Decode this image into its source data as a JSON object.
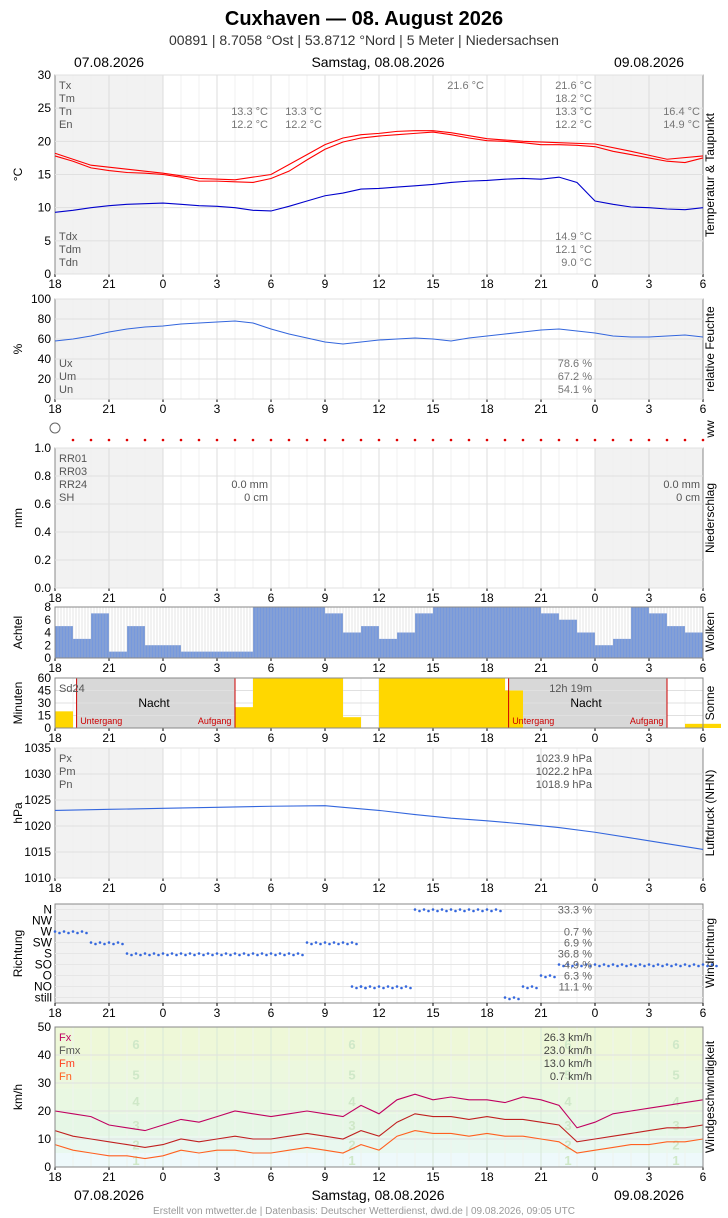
{
  "header": {
    "title": "Cuxhaven  —  08. August 2026",
    "subtitle": "00891  |  8.7058 °Ost  |  53.8712 °Nord  |  5 Meter  |  Niedersachsen",
    "date_left": "07.08.2026",
    "date_center": "Samstag, 08.08.2026",
    "date_right": "09.08.2026"
  },
  "footer": {
    "credit": "Erstellt von mtwetter.de | Datenbasis: Deutscher Wetterdienst, dwd.de | 09.08.2026, 09:05 UTC",
    "date_left": "07.08.2026",
    "date_center": "Samstag, 08.08.2026",
    "date_right": "09.08.2026"
  },
  "x_ticks": [
    "18",
    "21",
    "0",
    "3",
    "6",
    "9",
    "12",
    "15",
    "18",
    "21",
    "0",
    "3",
    "6"
  ],
  "chart_data": [
    {
      "id": "temperature",
      "type": "line",
      "side_label": "Temperatur & Taupunkt",
      "ylabel": "°C",
      "ylim": [
        0,
        30
      ],
      "yticks": [
        0,
        5,
        10,
        15,
        20,
        25,
        30
      ],
      "series": [
        {
          "name": "T",
          "color": "#ff0000",
          "x": [
            18,
            19,
            20,
            21,
            22,
            23,
            24,
            25,
            26,
            27,
            28,
            29,
            30,
            31,
            32,
            33,
            34,
            35,
            36,
            37,
            38,
            39,
            40,
            41,
            42,
            43,
            44,
            45,
            46,
            47,
            48,
            49,
            50,
            51,
            52,
            53,
            54
          ],
          "values": [
            17.8,
            17.0,
            16.0,
            15.6,
            15.3,
            15.2,
            15.0,
            14.6,
            14.0,
            14.0,
            13.9,
            13.8,
            14.4,
            15.5,
            17.2,
            18.8,
            19.9,
            20.5,
            20.8,
            21.0,
            21.2,
            21.4,
            21.0,
            20.5,
            20.1,
            20.0,
            19.8,
            19.5,
            19.5,
            19.4,
            19.2,
            18.5,
            18.0,
            17.5,
            17.0,
            16.8,
            17.5
          ]
        },
        {
          "name": "Tmax",
          "color": "#ff0000",
          "x": [
            18,
            20,
            22,
            24,
            26,
            28,
            30,
            32,
            33,
            34,
            35,
            36,
            37,
            38,
            39,
            40,
            42,
            44,
            46,
            48,
            50,
            52,
            54
          ],
          "values": [
            18.2,
            16.4,
            15.8,
            15.2,
            14.4,
            14.2,
            15.0,
            18.0,
            19.5,
            20.5,
            21.0,
            21.2,
            21.5,
            21.6,
            21.6,
            21.3,
            20.4,
            20.0,
            19.8,
            19.6,
            18.5,
            17.3,
            17.8
          ]
        },
        {
          "name": "Td",
          "color": "#0000cc",
          "x": [
            18,
            19,
            20,
            21,
            22,
            23,
            24,
            25,
            26,
            27,
            28,
            29,
            30,
            31,
            32,
            33,
            34,
            35,
            36,
            37,
            38,
            39,
            40,
            41,
            42,
            43,
            44,
            45,
            46,
            47,
            48,
            49,
            50,
            51,
            52,
            53,
            54
          ],
          "values": [
            9.3,
            9.6,
            10.0,
            10.3,
            10.5,
            10.6,
            10.7,
            10.5,
            10.3,
            10.2,
            10.0,
            9.6,
            9.5,
            10.2,
            11.0,
            11.8,
            12.2,
            12.8,
            12.9,
            13.1,
            13.3,
            13.5,
            13.8,
            14.0,
            14.1,
            14.3,
            14.4,
            14.3,
            14.6,
            13.8,
            11.0,
            10.5,
            10.1,
            10.0,
            9.8,
            9.7,
            10.0
          ]
        }
      ],
      "stats_top": {
        "labels": [
          "Tx",
          "Tm",
          "Tn",
          "En"
        ],
        "day1": [
          "",
          "",
          "13.3 °C",
          "12.2 °C"
        ],
        "day2": [
          "21.6 °C",
          "18.2 °C",
          "13.3 °C",
          "12.2 °C"
        ],
        "day3": [
          "",
          "",
          "16.4 °C",
          "14.9 °C"
        ],
        "night": [
          "",
          "",
          "13.3 °C",
          "12.2 °C"
        ],
        "peak": "21.6 °C"
      },
      "stats_bottom": {
        "labels": [
          "Tdx",
          "Tdm",
          "Tdn"
        ],
        "values": [
          "14.9 °C",
          "12.1 °C",
          "9.0 °C"
        ]
      }
    },
    {
      "id": "humidity",
      "type": "line",
      "side_label": "relative Feuchte",
      "ylabel": "%",
      "ylim": [
        0,
        100
      ],
      "yticks": [
        0,
        20,
        40,
        60,
        80,
        100
      ],
      "series": [
        {
          "name": "U",
          "color": "#3366dd",
          "x": [
            18,
            19,
            20,
            21,
            22,
            23,
            24,
            25,
            26,
            27,
            28,
            29,
            30,
            31,
            32,
            33,
            34,
            35,
            36,
            37,
            38,
            39,
            40,
            41,
            42,
            43,
            44,
            45,
            46,
            47,
            48,
            49,
            50,
            51,
            52,
            53,
            54
          ],
          "values": [
            58,
            60,
            63,
            67,
            70,
            72,
            73,
            75,
            76,
            77,
            78,
            76,
            70,
            65,
            61,
            57,
            55,
            57,
            59,
            60,
            61,
            60,
            58,
            61,
            63,
            65,
            67,
            69,
            70,
            68,
            66,
            63,
            62,
            62,
            63,
            64,
            62
          ]
        }
      ],
      "stats": {
        "labels": [
          "Ux",
          "Um",
          "Un"
        ],
        "values": [
          "78.6 %",
          "67.2 %",
          "54.1 %"
        ]
      }
    },
    {
      "id": "ww",
      "type": "scatter",
      "side_label": "ww"
    },
    {
      "id": "precip",
      "type": "bar",
      "side_label": "Niederschlag",
      "ylabel": "mm",
      "ylim": [
        0,
        1.0
      ],
      "yticks": [
        "0.0",
        "0.2",
        "0.4",
        "0.6",
        "0.8",
        "1.0"
      ],
      "stats": {
        "labels": [
          "RR01",
          "RR03",
          "RR24",
          "SH"
        ],
        "day1": [
          "",
          "",
          "0.0 mm",
          "0 cm"
        ],
        "day2": [
          "",
          "",
          "0.0 mm",
          "0 cm"
        ]
      }
    },
    {
      "id": "clouds",
      "type": "bar",
      "side_label": "Wolken",
      "ylabel": "Achtel",
      "ylim": [
        0,
        8
      ],
      "yticks": [
        0,
        2,
        4,
        6,
        8
      ],
      "x": [
        18,
        19,
        20,
        21,
        22,
        23,
        24,
        25,
        26,
        27,
        28,
        29,
        30,
        31,
        32,
        33,
        34,
        35,
        36,
        37,
        38,
        39,
        40,
        41,
        42,
        43,
        44,
        45,
        46,
        47,
        48,
        49,
        50,
        51,
        52,
        53,
        54
      ],
      "values": [
        5,
        3,
        7,
        1,
        5,
        2,
        2,
        1,
        1,
        1,
        1,
        8,
        8,
        8,
        8,
        7,
        4,
        5,
        3,
        4,
        7,
        8,
        8,
        8,
        8,
        8,
        8,
        7,
        6,
        4,
        2,
        3,
        8,
        7,
        5,
        4,
        7
      ]
    },
    {
      "id": "sun",
      "type": "bar",
      "side_label": "Sonne",
      "ylabel": "Minuten",
      "ylim": [
        0,
        60
      ],
      "yticks": [
        0,
        15,
        30,
        45,
        60
      ],
      "labels": {
        "sd24": "Sd24",
        "night": "Nacht",
        "sunset": "Untergang",
        "sunrise": "Aufgang",
        "day_length": "12h 19m"
      },
      "x": [
        18,
        21,
        22,
        23,
        24,
        25,
        26,
        27,
        28,
        29,
        30,
        31,
        32,
        33,
        34,
        35,
        36,
        37,
        38,
        39,
        40,
        41,
        42,
        43,
        44,
        45,
        46,
        47,
        48,
        49,
        50,
        51,
        52,
        53,
        54
      ],
      "values": [
        20,
        0,
        0,
        0,
        0,
        0,
        0,
        0,
        25,
        60,
        60,
        60,
        60,
        60,
        13,
        0,
        60,
        60,
        60,
        60,
        60,
        60,
        60,
        45,
        0,
        0,
        0,
        0,
        0,
        0,
        0,
        0,
        0,
        5,
        5
      ]
    },
    {
      "id": "pressure",
      "type": "line",
      "side_label": "Luftdruck (NHN)",
      "ylabel": "hPa",
      "ylim": [
        1010,
        1035
      ],
      "yticks": [
        1010,
        1015,
        1020,
        1025,
        1030,
        1035
      ],
      "series": [
        {
          "name": "P",
          "color": "#3366dd",
          "x": [
            18,
            21,
            24,
            27,
            30,
            33,
            34,
            36,
            38,
            40,
            42,
            44,
            46,
            48,
            50,
            52,
            54
          ],
          "values": [
            1023.0,
            1023.2,
            1023.4,
            1023.6,
            1023.8,
            1023.9,
            1023.6,
            1023.0,
            1022.2,
            1021.5,
            1021.0,
            1020.4,
            1019.7,
            1018.8,
            1017.7,
            1016.6,
            1015.5
          ]
        }
      ],
      "stats": {
        "labels": [
          "Px",
          "Pm",
          "Pn"
        ],
        "values": [
          "1023.9 hPa",
          "1022.2 hPa",
          "1018.9 hPa"
        ]
      }
    },
    {
      "id": "wind_direction",
      "type": "scatter",
      "side_label": "Windrichtung",
      "ylabel": "Richtung",
      "categories": [
        "still",
        "NO",
        "O",
        "SO",
        "S",
        "SW",
        "W",
        "NW",
        "N"
      ],
      "x": [
        18,
        19,
        20,
        21,
        22,
        23,
        24,
        25,
        26,
        27,
        28,
        29,
        30,
        31,
        32,
        33,
        34,
        34.5,
        35,
        36,
        37,
        38,
        39,
        40,
        41,
        42,
        43,
        44,
        45,
        46,
        47,
        48,
        49,
        50,
        51,
        52,
        53,
        54
      ],
      "values": [
        "W",
        "W",
        "SW",
        "SW",
        "S",
        "S",
        "S",
        "S",
        "S",
        "S",
        "S",
        "S",
        "S",
        "S",
        "SW",
        "SW",
        "SW",
        "NO",
        "NO",
        "NO",
        "NO",
        "N",
        "N",
        "N",
        "N",
        "N",
        "still",
        "NO",
        "O",
        "SO",
        "SO",
        "SO",
        "SO",
        "SO",
        "SO",
        "SO",
        "SO",
        "SO"
      ],
      "stats": [
        {
          "label": "",
          "value": "33.3 %"
        },
        {
          "label": "",
          "value": "0.7 %"
        },
        {
          "label": "",
          "value": "6.9 %"
        },
        {
          "label": "",
          "value": "36.8 %"
        },
        {
          "label": "",
          "value": "4.9 %"
        },
        {
          "label": "",
          "value": "6.3 %"
        },
        {
          "label": "",
          "value": "11.1 %"
        }
      ]
    },
    {
      "id": "wind_speed",
      "type": "line",
      "side_label": "Windgeschwindigkeit",
      "ylabel": "km/h",
      "ylim": [
        0,
        50
      ],
      "yticks": [
        0,
        10,
        20,
        30,
        40,
        50
      ],
      "beaufort": [
        "1",
        "2",
        "3",
        "4",
        "5",
        "6"
      ],
      "series": [
        {
          "name": "Fx",
          "color": "#c00060",
          "x": [
            18,
            19,
            20,
            21,
            22,
            23,
            24,
            25,
            26,
            27,
            28,
            29,
            30,
            31,
            32,
            33,
            34,
            35,
            36,
            37,
            38,
            39,
            40,
            41,
            42,
            43,
            44,
            45,
            46,
            47,
            48,
            49,
            50,
            51,
            52,
            53,
            54
          ],
          "values": [
            20,
            19,
            18,
            15,
            14,
            13,
            15,
            17,
            16,
            18,
            20,
            19,
            18,
            19,
            20,
            19,
            18,
            22,
            19,
            24,
            26,
            24,
            25,
            24,
            24,
            23,
            25,
            24,
            22,
            14,
            16,
            19,
            20,
            21,
            22,
            23,
            24
          ]
        },
        {
          "name": "Fmx",
          "color": "#c02020",
          "x": [
            18,
            19,
            20,
            21,
            22,
            23,
            24,
            25,
            26,
            27,
            28,
            29,
            30,
            31,
            32,
            33,
            34,
            35,
            36,
            37,
            38,
            39,
            40,
            41,
            42,
            43,
            44,
            45,
            46,
            47,
            48,
            49,
            50,
            51,
            52,
            53,
            54
          ],
          "values": [
            13,
            11,
            10,
            9,
            8,
            7,
            8,
            10,
            9,
            10,
            11,
            10,
            10,
            11,
            12,
            11,
            10,
            13,
            11,
            16,
            19,
            18,
            18,
            17,
            18,
            17,
            17,
            16,
            15,
            9,
            10,
            11,
            12,
            13,
            14,
            14,
            15
          ]
        },
        {
          "name": "Fm",
          "color": "#ff6020",
          "x": [
            18,
            19,
            20,
            21,
            22,
            23,
            24,
            25,
            26,
            27,
            28,
            29,
            30,
            31,
            32,
            33,
            34,
            35,
            36,
            37,
            38,
            39,
            40,
            41,
            42,
            43,
            44,
            45,
            46,
            47,
            48,
            49,
            50,
            51,
            52,
            53,
            54
          ],
          "values": [
            8,
            6,
            5,
            4,
            4,
            3,
            4,
            6,
            5,
            6,
            6,
            5,
            5,
            6,
            7,
            6,
            5,
            8,
            6,
            11,
            13,
            12,
            12,
            11,
            12,
            11,
            11,
            10,
            9,
            5,
            6,
            7,
            8,
            8,
            9,
            9,
            10
          ]
        }
      ],
      "stats": {
        "labels": [
          "Fx",
          "Fmx",
          "Fm",
          "Fn"
        ],
        "values": [
          "26.3 km/h",
          "23.0 km/h",
          "13.0 km/h",
          "0.7 km/h"
        ]
      }
    }
  ]
}
